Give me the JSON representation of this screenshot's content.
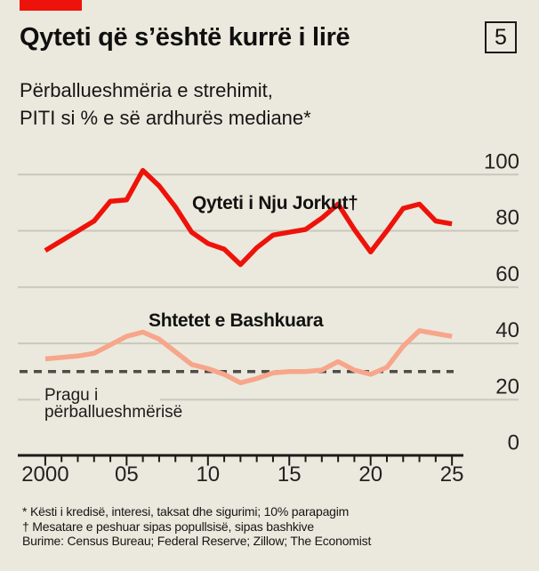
{
  "header": {
    "tag_color": "#ee130a",
    "title": "Qyteti që s’është kurrë i lirë",
    "subtitle_line1": "Përballueshmëria e strehimit,",
    "subtitle_line2": "PITI si % e së ardhurës mediane*",
    "chart_number": "5"
  },
  "chart_data": {
    "type": "line",
    "title": "Qyteti që s’është kurrë i lirë",
    "subtitle": "Përballueshmëria e strehimit, PITI si % e së ardhurës mediane*",
    "x": [
      2000,
      2001,
      2002,
      2003,
      2004,
      2005,
      2006,
      2007,
      2008,
      2009,
      2010,
      2011,
      2012,
      2013,
      2014,
      2015,
      2016,
      2017,
      2018,
      2019,
      2020,
      2021,
      2022,
      2023,
      2024,
      2025
    ],
    "series": [
      {
        "name": "Qyteti i Nju Jorkut†",
        "color": "#ee130a",
        "values": [
          73,
          76.5,
          80,
          83.5,
          90.5,
          91,
          101.5,
          96,
          88.5,
          79.5,
          75.5,
          73.5,
          68,
          74,
          78.5,
          79.5,
          80.5,
          84.5,
          89.5,
          80.5,
          72.5,
          80,
          88,
          89.5,
          83.5,
          82.5
        ]
      },
      {
        "name": "Shtetet e Bashkuara",
        "color": "#f7a68c",
        "values": [
          34.5,
          35,
          35.5,
          36.5,
          39.5,
          42.5,
          44,
          41.5,
          37,
          32.5,
          31,
          29,
          26,
          27.5,
          29.5,
          30,
          30,
          30.5,
          33.5,
          30.5,
          29,
          31.5,
          39,
          44.5,
          43.5,
          42.5
        ]
      }
    ],
    "threshold": {
      "label_line1": "Pragu i",
      "label_line2": "përballueshmërisë",
      "value": 30,
      "style": "dashed",
      "color": "#4d4c47"
    },
    "y_ticks": [
      0,
      20,
      40,
      60,
      80,
      100
    ],
    "y_tick_labels": [
      "0",
      "20",
      "40",
      "60",
      "80",
      "100"
    ],
    "x_tick_labels": [
      {
        "year": 2000,
        "label": "2000"
      },
      {
        "year": 2005,
        "label": "05"
      },
      {
        "year": 2010,
        "label": "10"
      },
      {
        "year": 2015,
        "label": "15"
      },
      {
        "year": 2020,
        "label": "20"
      },
      {
        "year": 2025,
        "label": "25"
      }
    ],
    "xlabel": "",
    "ylabel": "PITI si % e së ardhurës mediane",
    "ylim": [
      0,
      105
    ],
    "xlim": [
      2000,
      2025
    ],
    "grid": true,
    "legend_position": "inline-annotations",
    "grid_color": "#c9c8bc",
    "axis_color": "#1a1a1a"
  },
  "footnotes": {
    "line1": "* Kësti i kredisë, interesi, taksat dhe sigurimi; 10% parapagim",
    "line2": "† Mesatare e peshuar sipas popullsisë, sipas bashkive",
    "line3": "Burime: Census Bureau; Federal Reserve; Zillow; The Economist"
  }
}
